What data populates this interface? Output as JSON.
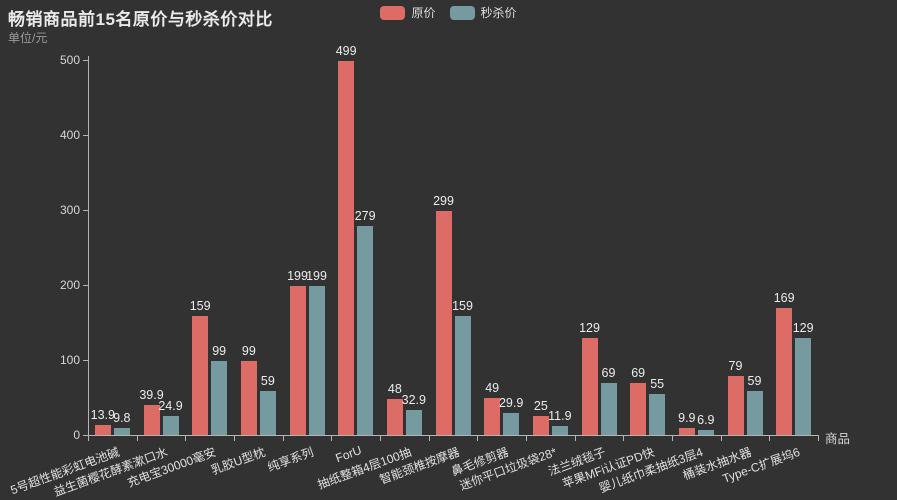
{
  "header": {
    "title": "畅销商品前15名原价与秒杀价对比",
    "unit_label": "单位/元"
  },
  "legend": {
    "items": [
      {
        "label": "原价",
        "color": "#dd6b66"
      },
      {
        "label": "秒杀价",
        "color": "#759aa0"
      }
    ]
  },
  "chart_data": {
    "type": "bar",
    "title": "畅销商品前15名原价与秒杀价对比",
    "ylabel": "单位/元",
    "xlabel": "商品",
    "ylim": [
      0,
      500
    ],
    "yticks": [
      0,
      100,
      200,
      300,
      400,
      500
    ],
    "grid": false,
    "legend_position": "top-center",
    "value_labels": true,
    "background": "#323232",
    "categories": [
      "5号超性能彩虹电池碱",
      "益生菌樱花酵素漱口水",
      "充电宝30000毫安",
      "乳胶U型枕",
      "纯享系列",
      "ForU",
      "抽纸整箱4层100抽",
      "智能颈椎按摩器",
      "鼻毛修剪器",
      "迷你平口垃圾袋28*",
      "法兰绒毯子",
      "苹果MFi认证PD快",
      "婴儿纸巾柔抽纸3层4",
      "桶装水抽水器",
      "Type-C扩展坞6"
    ],
    "series": [
      {
        "name": "原价",
        "color": "#dd6b66",
        "values": [
          13.9,
          39.9,
          159,
          99,
          199,
          499,
          48,
          299,
          49,
          25,
          129,
          69,
          9.9,
          79,
          169
        ]
      },
      {
        "name": "秒杀价",
        "color": "#759aa0",
        "values": [
          9.8,
          24.9,
          99,
          59,
          199,
          279,
          32.9,
          159,
          29.9,
          11.9,
          69,
          55,
          6.9,
          59,
          129
        ]
      }
    ]
  }
}
